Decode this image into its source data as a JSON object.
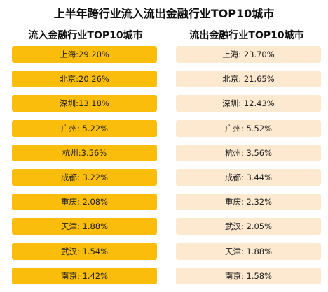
{
  "title": "上半年跨行业流入流出金融行业TOP10城市",
  "chart_data": [
    {
      "type": "table",
      "title": "流入金融行业TOP10城市",
      "categories": [
        "上海",
        "北京",
        "深圳",
        "广州",
        "杭州",
        "成都",
        "重庆",
        "天津",
        "武汉",
        "南京"
      ],
      "values": [
        29.2,
        20.26,
        13.18,
        5.22,
        3.56,
        3.22,
        2.08,
        1.88,
        1.54,
        1.42
      ],
      "labels": [
        "上海:29.20%",
        "北京:20.26%",
        "深圳:13.18%",
        "广州: 5.22%",
        "杭州:3.56%",
        "成都: 3.22%",
        "重庆: 2.08%",
        "天津: 1.88%",
        "武汉: 1.54%",
        "南京: 1.42%"
      ],
      "unit": "%",
      "color": "#fbbd0b"
    },
    {
      "type": "table",
      "title": "流出金融行业TOP10城市",
      "categories": [
        "上海",
        "北京",
        "深圳",
        "广州",
        "杭州",
        "成都",
        "重庆",
        "武汉",
        "天津",
        "南京"
      ],
      "values": [
        23.7,
        21.65,
        12.43,
        5.52,
        3.56,
        3.44,
        2.32,
        2.05,
        1.88,
        1.58
      ],
      "labels": [
        "上海: 23.70%",
        "北京: 21.65%",
        "深圳: 12.43%",
        "广州: 5.52%",
        "杭州: 3.56%",
        "成都: 3.44%",
        "重庆: 2.32%",
        "武汉: 2.05%",
        "天津: 1.88%",
        "南京: 1.58%"
      ],
      "unit": "%",
      "color": "#fde9cf"
    }
  ]
}
